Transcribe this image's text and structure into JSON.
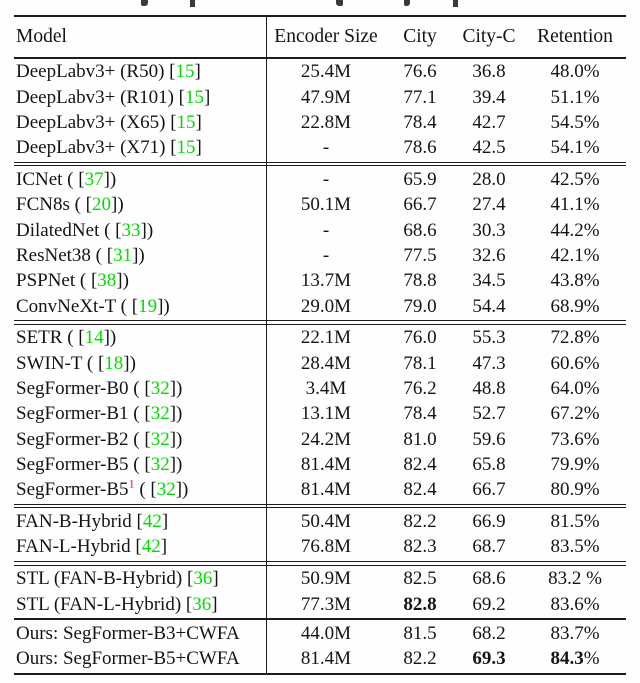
{
  "colors": {
    "text": "#141414",
    "citation": "#00dc00",
    "footnote_marker": "#ee1111",
    "rule": "#1c1c1c"
  },
  "header": {
    "columns": [
      "Model",
      "Encoder Size",
      "City",
      "City-C",
      "Retention"
    ]
  },
  "groups": [
    {
      "rule_after": "double",
      "rows": [
        {
          "model": [
            {
              "t": "DeepLabv3+ (R50) ["
            },
            {
              "t": "15",
              "color": "citation",
              "link": true
            },
            {
              "t": "]"
            }
          ],
          "cells": [
            [
              {
                "t": "25.4M"
              }
            ],
            [
              {
                "t": "76.6"
              }
            ],
            [
              {
                "t": "36.8"
              }
            ],
            [
              {
                "t": "48.0%"
              }
            ]
          ]
        },
        {
          "model": [
            {
              "t": "DeepLabv3+ (R101) ["
            },
            {
              "t": "15",
              "color": "citation",
              "link": true
            },
            {
              "t": "]"
            }
          ],
          "cells": [
            [
              {
                "t": "47.9M"
              }
            ],
            [
              {
                "t": "77.1"
              }
            ],
            [
              {
                "t": "39.4"
              }
            ],
            [
              {
                "t": "51.1%"
              }
            ]
          ]
        },
        {
          "model": [
            {
              "t": "DeepLabv3+ (X65) ["
            },
            {
              "t": "15",
              "color": "citation",
              "link": true
            },
            {
              "t": "]"
            }
          ],
          "cells": [
            [
              {
                "t": "22.8M"
              }
            ],
            [
              {
                "t": "78.4"
              }
            ],
            [
              {
                "t": "42.7"
              }
            ],
            [
              {
                "t": "54.5%"
              }
            ]
          ]
        },
        {
          "model": [
            {
              "t": "DeepLabv3+ (X71) ["
            },
            {
              "t": "15",
              "color": "citation",
              "link": true
            },
            {
              "t": "]"
            }
          ],
          "cells": [
            [
              {
                "t": "-"
              }
            ],
            [
              {
                "t": "78.6"
              }
            ],
            [
              {
                "t": "42.5"
              }
            ],
            [
              {
                "t": "54.1%"
              }
            ]
          ]
        }
      ]
    },
    {
      "rule_after": "double",
      "rows": [
        {
          "model": [
            {
              "t": "ICNet ( ["
            },
            {
              "t": "37",
              "color": "citation",
              "link": true
            },
            {
              "t": "])"
            }
          ],
          "cells": [
            [
              {
                "t": "-"
              }
            ],
            [
              {
                "t": "65.9"
              }
            ],
            [
              {
                "t": "28.0"
              }
            ],
            [
              {
                "t": "42.5%"
              }
            ]
          ]
        },
        {
          "model": [
            {
              "t": "FCN8s ( ["
            },
            {
              "t": "20",
              "color": "citation",
              "link": true
            },
            {
              "t": "])"
            }
          ],
          "cells": [
            [
              {
                "t": "50.1M"
              }
            ],
            [
              {
                "t": "66.7"
              }
            ],
            [
              {
                "t": "27.4"
              }
            ],
            [
              {
                "t": "41.1%"
              }
            ]
          ]
        },
        {
          "model": [
            {
              "t": "DilatedNet ( ["
            },
            {
              "t": "33",
              "color": "citation",
              "link": true
            },
            {
              "t": "])"
            }
          ],
          "cells": [
            [
              {
                "t": "-"
              }
            ],
            [
              {
                "t": "68.6"
              }
            ],
            [
              {
                "t": "30.3"
              }
            ],
            [
              {
                "t": "44.2%"
              }
            ]
          ]
        },
        {
          "model": [
            {
              "t": "ResNet38 ( ["
            },
            {
              "t": "31",
              "color": "citation",
              "link": true
            },
            {
              "t": "])"
            }
          ],
          "cells": [
            [
              {
                "t": "-"
              }
            ],
            [
              {
                "t": "77.5"
              }
            ],
            [
              {
                "t": "32.6"
              }
            ],
            [
              {
                "t": "42.1%"
              }
            ]
          ]
        },
        {
          "model": [
            {
              "t": "PSPNet ( ["
            },
            {
              "t": "38",
              "color": "citation",
              "link": true
            },
            {
              "t": "])"
            }
          ],
          "cells": [
            [
              {
                "t": "13.7M"
              }
            ],
            [
              {
                "t": "78.8"
              }
            ],
            [
              {
                "t": "34.5"
              }
            ],
            [
              {
                "t": "43.8%"
              }
            ]
          ]
        },
        {
          "model": [
            {
              "t": "ConvNeXt-T ( ["
            },
            {
              "t": "19",
              "color": "citation",
              "link": true
            },
            {
              "t": "])"
            }
          ],
          "cells": [
            [
              {
                "t": "29.0M"
              }
            ],
            [
              {
                "t": "79.0"
              }
            ],
            [
              {
                "t": "54.4"
              }
            ],
            [
              {
                "t": "68.9%"
              }
            ]
          ]
        }
      ]
    },
    {
      "rule_after": "double",
      "rows": [
        {
          "model": [
            {
              "t": "SETR ( ["
            },
            {
              "t": "14",
              "color": "citation",
              "link": true
            },
            {
              "t": "])"
            }
          ],
          "cells": [
            [
              {
                "t": "22.1M"
              }
            ],
            [
              {
                "t": "76.0"
              }
            ],
            [
              {
                "t": "55.3"
              }
            ],
            [
              {
                "t": "72.8%"
              }
            ]
          ]
        },
        {
          "model": [
            {
              "t": "SWIN-T ( ["
            },
            {
              "t": "18",
              "color": "citation",
              "link": true
            },
            {
              "t": "])"
            }
          ],
          "cells": [
            [
              {
                "t": "28.4M"
              }
            ],
            [
              {
                "t": "78.1"
              }
            ],
            [
              {
                "t": "47.3"
              }
            ],
            [
              {
                "t": "60.6%"
              }
            ]
          ]
        },
        {
          "model": [
            {
              "t": "SegFormer-B0 ( ["
            },
            {
              "t": "32",
              "color": "citation",
              "link": true
            },
            {
              "t": "])"
            }
          ],
          "cells": [
            [
              {
                "t": "3.4M"
              }
            ],
            [
              {
                "t": "76.2"
              }
            ],
            [
              {
                "t": "48.8"
              }
            ],
            [
              {
                "t": "64.0%"
              }
            ]
          ]
        },
        {
          "model": [
            {
              "t": "SegFormer-B1 ( ["
            },
            {
              "t": "32",
              "color": "citation",
              "link": true
            },
            {
              "t": "])"
            }
          ],
          "cells": [
            [
              {
                "t": "13.1M"
              }
            ],
            [
              {
                "t": "78.4"
              }
            ],
            [
              {
                "t": "52.7"
              }
            ],
            [
              {
                "t": "67.2%"
              }
            ]
          ]
        },
        {
          "model": [
            {
              "t": "SegFormer-B2 ( ["
            },
            {
              "t": "32",
              "color": "citation",
              "link": true
            },
            {
              "t": "])"
            }
          ],
          "cells": [
            [
              {
                "t": "24.2M"
              }
            ],
            [
              {
                "t": "81.0"
              }
            ],
            [
              {
                "t": "59.6"
              }
            ],
            [
              {
                "t": "73.6%"
              }
            ]
          ]
        },
        {
          "model": [
            {
              "t": "SegFormer-B5 ( ["
            },
            {
              "t": "32",
              "color": "citation",
              "link": true
            },
            {
              "t": "])"
            }
          ],
          "cells": [
            [
              {
                "t": "81.4M"
              }
            ],
            [
              {
                "t": "82.4"
              }
            ],
            [
              {
                "t": "65.8"
              }
            ],
            [
              {
                "t": "79.9%"
              }
            ]
          ]
        },
        {
          "model": [
            {
              "t": "SegFormer-B5"
            },
            {
              "t": "1",
              "color": "footnote_marker",
              "sup": true
            },
            {
              "t": " ( ["
            },
            {
              "t": "32",
              "color": "citation",
              "link": true
            },
            {
              "t": "])"
            }
          ],
          "cells": [
            [
              {
                "t": "81.4M"
              }
            ],
            [
              {
                "t": "82.4"
              }
            ],
            [
              {
                "t": "66.7"
              }
            ],
            [
              {
                "t": "80.9%"
              }
            ]
          ]
        }
      ]
    },
    {
      "rule_after": "double",
      "rows": [
        {
          "model": [
            {
              "t": "FAN-B-Hybrid ["
            },
            {
              "t": "42",
              "color": "citation",
              "link": true
            },
            {
              "t": "]"
            }
          ],
          "cells": [
            [
              {
                "t": "50.4M"
              }
            ],
            [
              {
                "t": "82.2"
              }
            ],
            [
              {
                "t": "66.9"
              }
            ],
            [
              {
                "t": "81.5%"
              }
            ]
          ]
        },
        {
          "model": [
            {
              "t": "FAN-L-Hybrid ["
            },
            {
              "t": "42",
              "color": "citation",
              "link": true
            },
            {
              "t": "]"
            }
          ],
          "cells": [
            [
              {
                "t": "76.8M"
              }
            ],
            [
              {
                "t": "82.3"
              }
            ],
            [
              {
                "t": "68.7"
              }
            ],
            [
              {
                "t": "83.5%"
              }
            ]
          ]
        }
      ]
    },
    {
      "rule_after": "single",
      "rows": [
        {
          "model": [
            {
              "t": "STL (FAN-B-Hybrid) ["
            },
            {
              "t": "36",
              "color": "citation",
              "link": true
            },
            {
              "t": "]"
            }
          ],
          "cells": [
            [
              {
                "t": "50.9M"
              }
            ],
            [
              {
                "t": "82.5"
              }
            ],
            [
              {
                "t": "68.6"
              }
            ],
            [
              {
                "t": "83.2 %"
              }
            ]
          ]
        },
        {
          "model": [
            {
              "t": "STL (FAN-L-Hybrid) ["
            },
            {
              "t": "36",
              "color": "citation",
              "link": true
            },
            {
              "t": "]"
            }
          ],
          "cells": [
            [
              {
                "t": "77.3M"
              }
            ],
            [
              {
                "t": "82.8",
                "bold": true
              }
            ],
            [
              {
                "t": "69.2"
              }
            ],
            [
              {
                "t": "83.6%"
              }
            ]
          ]
        }
      ]
    },
    {
      "rule_after": null,
      "rows": [
        {
          "model": [
            {
              "t": "Ours: SegFormer-B3+CWFA"
            }
          ],
          "cells": [
            [
              {
                "t": "44.0M"
              }
            ],
            [
              {
                "t": "81.5"
              }
            ],
            [
              {
                "t": "68.2"
              }
            ],
            [
              {
                "t": "83.7%"
              }
            ]
          ]
        },
        {
          "model": [
            {
              "t": "Ours: SegFormer-B5+CWFA"
            }
          ],
          "cells": [
            [
              {
                "t": "81.4M"
              }
            ],
            [
              {
                "t": "82.2"
              }
            ],
            [
              {
                "t": "69.3",
                "bold": true
              }
            ],
            [
              {
                "t": "84.3",
                "bold": true
              },
              {
                "t": "%"
              }
            ]
          ]
        }
      ]
    }
  ]
}
